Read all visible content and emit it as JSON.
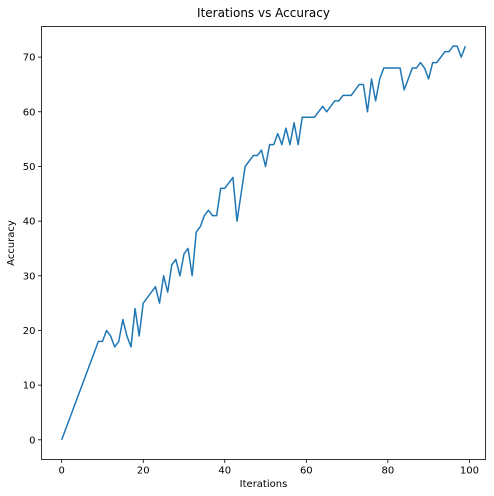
{
  "chart_data": {
    "type": "line",
    "title": "Iterations vs Accuracy",
    "xlabel": "Iterations",
    "ylabel": "Accuracy",
    "xlim": [
      -4.95,
      103.95
    ],
    "ylim": [
      -3.6,
      75.6
    ],
    "xticks": [
      0,
      20,
      40,
      60,
      80,
      100
    ],
    "yticks": [
      0,
      10,
      20,
      30,
      40,
      50,
      60,
      70
    ],
    "grid": false,
    "series_color": "#1f77b4",
    "x": [
      0,
      1,
      2,
      3,
      4,
      5,
      6,
      7,
      8,
      9,
      10,
      11,
      12,
      13,
      14,
      15,
      16,
      17,
      18,
      19,
      20,
      21,
      22,
      23,
      24,
      25,
      26,
      27,
      28,
      29,
      30,
      31,
      32,
      33,
      34,
      35,
      36,
      37,
      38,
      39,
      40,
      41,
      42,
      43,
      44,
      45,
      46,
      47,
      48,
      49,
      50,
      51,
      52,
      53,
      54,
      55,
      56,
      57,
      58,
      59,
      60,
      61,
      62,
      63,
      64,
      65,
      66,
      67,
      68,
      69,
      70,
      71,
      72,
      73,
      74,
      75,
      76,
      77,
      78,
      79,
      80,
      81,
      82,
      83,
      84,
      85,
      86,
      87,
      88,
      89,
      90,
      91,
      92,
      93,
      94,
      95,
      96,
      97,
      98,
      99
    ],
    "y": [
      0,
      2,
      4,
      6,
      8,
      10,
      12,
      14,
      16,
      18,
      18,
      20,
      19,
      17,
      18,
      22,
      19,
      17,
      24,
      19,
      25,
      26,
      27,
      28,
      25,
      30,
      27,
      32,
      33,
      30,
      34,
      35,
      30,
      38,
      39,
      41,
      42,
      41,
      41,
      46,
      46,
      47,
      48,
      40,
      45,
      50,
      51,
      52,
      52,
      53,
      50,
      54,
      54,
      56,
      54,
      57,
      54,
      58,
      54,
      59,
      59,
      59,
      59,
      60,
      61,
      60,
      61,
      62,
      62,
      63,
      63,
      63,
      64,
      65,
      65,
      60,
      66,
      62,
      66,
      68,
      68,
      68,
      68,
      68,
      64,
      66,
      68,
      68,
      69,
      68,
      66,
      69,
      69,
      70,
      71,
      71,
      72,
      72,
      70,
      72
    ]
  }
}
